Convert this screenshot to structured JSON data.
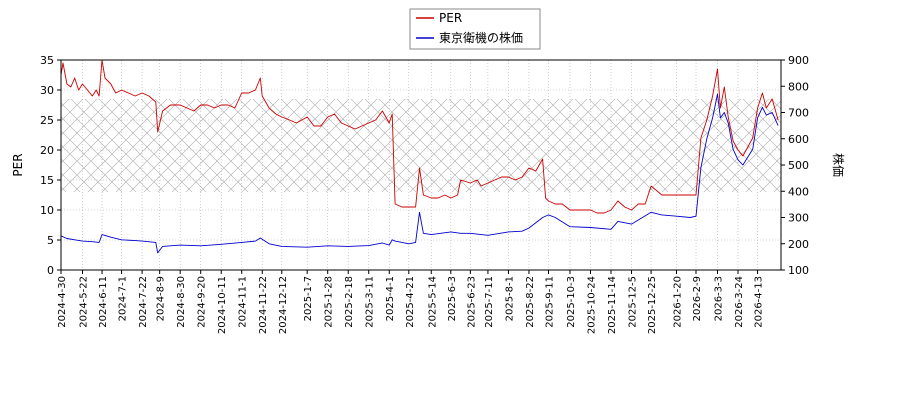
{
  "chart_data": {
    "type": "line",
    "legend": {
      "placement": "top-center",
      "entries": [
        {
          "label": "PER",
          "color": "#cc0000"
        },
        {
          "label": "東京衛機の株価",
          "color": "#0000cc"
        }
      ]
    },
    "ylabel_left": "PER",
    "ylabel_right": "株価",
    "ylim_left": [
      0,
      35
    ],
    "ylim_right": [
      100,
      900
    ],
    "yticks_left": [
      "0",
      "5",
      "10",
      "15",
      "20",
      "25",
      "30",
      "35"
    ],
    "yticks_right": [
      "100",
      "200",
      "300",
      "400",
      "500",
      "600",
      "700",
      "800",
      "900"
    ],
    "xlim": [
      "2024-04-30",
      "2026-05-07"
    ],
    "xticks": [
      "2024-4-30",
      "2024-5-22",
      "2024-6-11",
      "2024-7-1",
      "2024-7-22",
      "2024-8-9",
      "2024-8-30",
      "2024-9-20",
      "2024-10-11",
      "2024-11-1",
      "2024-11-22",
      "2024-12-12",
      "2025-1-7",
      "2025-1-28",
      "2025-2-18",
      "2025-3-11",
      "2025-4-1",
      "2025-4-21",
      "2025-5-14",
      "2025-6-3",
      "2025-6-23",
      "2025-7-11",
      "2025-8-1",
      "2025-8-22",
      "2025-9-11",
      "2025-10-3",
      "2025-10-24",
      "2025-11-14",
      "2025-12-5",
      "2025-12-25",
      "2026-1-20",
      "2026-2-9",
      "2026-3-3",
      "2026-3-24",
      "2026-4-13"
    ],
    "band_left": [
      13,
      28.5
    ],
    "band_style": "cross-hatch",
    "grid": true,
    "series": [
      {
        "name": "PER",
        "axis": "left",
        "color": "#cc0000",
        "points": [
          [
            "2024-04-30",
            32.5
          ],
          [
            "2024-05-02",
            34.5
          ],
          [
            "2024-05-06",
            31.0
          ],
          [
            "2024-05-10",
            30.5
          ],
          [
            "2024-05-14",
            32.0
          ],
          [
            "2024-05-18",
            30.0
          ],
          [
            "2024-05-22",
            31.0
          ],
          [
            "2024-05-27",
            30.0
          ],
          [
            "2024-06-01",
            29.0
          ],
          [
            "2024-06-05",
            30.0
          ],
          [
            "2024-06-08",
            29.0
          ],
          [
            "2024-06-11",
            35.0
          ],
          [
            "2024-06-14",
            32.0
          ],
          [
            "2024-06-20",
            31.0
          ],
          [
            "2024-06-25",
            29.5
          ],
          [
            "2024-07-01",
            30.0
          ],
          [
            "2024-07-08",
            29.5
          ],
          [
            "2024-07-15",
            29.0
          ],
          [
            "2024-07-22",
            29.5
          ],
          [
            "2024-07-29",
            29.0
          ],
          [
            "2024-08-05",
            28.0
          ],
          [
            "2024-08-07",
            23.0
          ],
          [
            "2024-08-12",
            26.5
          ],
          [
            "2024-08-20",
            27.5
          ],
          [
            "2024-08-30",
            27.5
          ],
          [
            "2024-09-06",
            27.0
          ],
          [
            "2024-09-13",
            26.5
          ],
          [
            "2024-09-20",
            27.5
          ],
          [
            "2024-09-27",
            27.5
          ],
          [
            "2024-10-04",
            27.0
          ],
          [
            "2024-10-11",
            27.5
          ],
          [
            "2024-10-18",
            27.5
          ],
          [
            "2024-10-25",
            27.0
          ],
          [
            "2024-11-01",
            29.5
          ],
          [
            "2024-11-08",
            29.5
          ],
          [
            "2024-11-15",
            30.0
          ],
          [
            "2024-11-20",
            32.0
          ],
          [
            "2024-11-22",
            29.0
          ],
          [
            "2024-11-29",
            27.0
          ],
          [
            "2024-12-06",
            26.0
          ],
          [
            "2024-12-12",
            25.5
          ],
          [
            "2024-12-20",
            25.0
          ],
          [
            "2024-12-27",
            24.5
          ],
          [
            "2025-01-07",
            25.5
          ],
          [
            "2025-01-14",
            24.0
          ],
          [
            "2025-01-21",
            24.0
          ],
          [
            "2025-01-28",
            25.5
          ],
          [
            "2025-02-04",
            26.0
          ],
          [
            "2025-02-11",
            24.5
          ],
          [
            "2025-02-18",
            24.0
          ],
          [
            "2025-02-25",
            23.5
          ],
          [
            "2025-03-04",
            24.0
          ],
          [
            "2025-03-11",
            24.5
          ],
          [
            "2025-03-18",
            25.0
          ],
          [
            "2025-03-25",
            26.5
          ],
          [
            "2025-04-01",
            24.5
          ],
          [
            "2025-04-04",
            26.0
          ],
          [
            "2025-04-07",
            11.0
          ],
          [
            "2025-04-14",
            10.5
          ],
          [
            "2025-04-21",
            10.5
          ],
          [
            "2025-04-28",
            10.5
          ],
          [
            "2025-05-02",
            17.0
          ],
          [
            "2025-05-06",
            12.5
          ],
          [
            "2025-05-14",
            12.0
          ],
          [
            "2025-05-21",
            12.0
          ],
          [
            "2025-05-28",
            12.5
          ],
          [
            "2025-06-03",
            12.0
          ],
          [
            "2025-06-10",
            12.5
          ],
          [
            "2025-06-13",
            15.0
          ],
          [
            "2025-06-23",
            14.5
          ],
          [
            "2025-06-30",
            15.0
          ],
          [
            "2025-07-04",
            14.0
          ],
          [
            "2025-07-11",
            14.5
          ],
          [
            "2025-07-18",
            15.0
          ],
          [
            "2025-07-25",
            15.5
          ],
          [
            "2025-08-01",
            15.5
          ],
          [
            "2025-08-08",
            15.0
          ],
          [
            "2025-08-15",
            15.5
          ],
          [
            "2025-08-22",
            17.0
          ],
          [
            "2025-08-29",
            16.5
          ],
          [
            "2025-09-05",
            18.5
          ],
          [
            "2025-09-08",
            12.0
          ],
          [
            "2025-09-11",
            11.5
          ],
          [
            "2025-09-18",
            11.0
          ],
          [
            "2025-09-25",
            11.0
          ],
          [
            "2025-10-03",
            10.0
          ],
          [
            "2025-10-10",
            10.0
          ],
          [
            "2025-10-17",
            10.0
          ],
          [
            "2025-10-24",
            10.0
          ],
          [
            "2025-10-31",
            9.5
          ],
          [
            "2025-11-07",
            9.5
          ],
          [
            "2025-11-14",
            10.0
          ],
          [
            "2025-11-21",
            11.5
          ],
          [
            "2025-11-28",
            10.5
          ],
          [
            "2025-12-05",
            10.0
          ],
          [
            "2025-12-12",
            11.0
          ],
          [
            "2025-12-19",
            11.0
          ],
          [
            "2025-12-25",
            14.0
          ],
          [
            "2026-01-05",
            12.5
          ],
          [
            "2026-01-12",
            12.5
          ],
          [
            "2026-01-20",
            12.5
          ],
          [
            "2026-01-27",
            12.5
          ],
          [
            "2026-02-03",
            12.5
          ],
          [
            "2026-02-09",
            12.5
          ],
          [
            "2026-02-14",
            22.0
          ],
          [
            "2026-02-20",
            25.0
          ],
          [
            "2026-02-26",
            29.0
          ],
          [
            "2026-03-03",
            33.5
          ],
          [
            "2026-03-06",
            27.0
          ],
          [
            "2026-03-10",
            30.5
          ],
          [
            "2026-03-14",
            25.5
          ],
          [
            "2026-03-19",
            21.5
          ],
          [
            "2026-03-24",
            20.0
          ],
          [
            "2026-03-29",
            19.0
          ],
          [
            "2026-04-03",
            20.5
          ],
          [
            "2026-04-08",
            22.0
          ],
          [
            "2026-04-13",
            27.0
          ],
          [
            "2026-04-18",
            29.5
          ],
          [
            "2026-04-22",
            27.0
          ],
          [
            "2026-04-28",
            28.5
          ],
          [
            "2026-05-04",
            25.0
          ]
        ]
      },
      {
        "name": "東京衛機の株価",
        "axis": "right",
        "color": "#0000cc",
        "points": [
          [
            "2024-04-30",
            230
          ],
          [
            "2024-05-06",
            220
          ],
          [
            "2024-05-14",
            215
          ],
          [
            "2024-05-22",
            210
          ],
          [
            "2024-06-01",
            208
          ],
          [
            "2024-06-08",
            205
          ],
          [
            "2024-06-11",
            235
          ],
          [
            "2024-06-20",
            225
          ],
          [
            "2024-07-01",
            215
          ],
          [
            "2024-07-15",
            212
          ],
          [
            "2024-07-22",
            210
          ],
          [
            "2024-08-05",
            205
          ],
          [
            "2024-08-07",
            165
          ],
          [
            "2024-08-12",
            190
          ],
          [
            "2024-08-30",
            195
          ],
          [
            "2024-09-20",
            192
          ],
          [
            "2024-10-11",
            198
          ],
          [
            "2024-11-01",
            205
          ],
          [
            "2024-11-15",
            210
          ],
          [
            "2024-11-20",
            222
          ],
          [
            "2024-11-29",
            200
          ],
          [
            "2024-12-12",
            190
          ],
          [
            "2025-01-07",
            187
          ],
          [
            "2025-01-28",
            192
          ],
          [
            "2025-02-18",
            190
          ],
          [
            "2025-03-11",
            193
          ],
          [
            "2025-03-25",
            203
          ],
          [
            "2025-04-01",
            195
          ],
          [
            "2025-04-04",
            215
          ],
          [
            "2025-04-07",
            210
          ],
          [
            "2025-04-21",
            200
          ],
          [
            "2025-04-28",
            205
          ],
          [
            "2025-05-02",
            320
          ],
          [
            "2025-05-06",
            240
          ],
          [
            "2025-05-14",
            235
          ],
          [
            "2025-06-03",
            245
          ],
          [
            "2025-06-13",
            240
          ],
          [
            "2025-06-23",
            240
          ],
          [
            "2025-07-11",
            232
          ],
          [
            "2025-08-01",
            245
          ],
          [
            "2025-08-15",
            248
          ],
          [
            "2025-08-22",
            260
          ],
          [
            "2025-09-05",
            300
          ],
          [
            "2025-09-11",
            310
          ],
          [
            "2025-09-18",
            300
          ],
          [
            "2025-10-03",
            265
          ],
          [
            "2025-10-24",
            262
          ],
          [
            "2025-11-14",
            255
          ],
          [
            "2025-11-21",
            285
          ],
          [
            "2025-12-05",
            275
          ],
          [
            "2025-12-25",
            320
          ],
          [
            "2026-01-05",
            310
          ],
          [
            "2026-01-20",
            305
          ],
          [
            "2026-02-03",
            300
          ],
          [
            "2026-02-09",
            305
          ],
          [
            "2026-02-14",
            490
          ],
          [
            "2026-02-20",
            600
          ],
          [
            "2026-02-26",
            680
          ],
          [
            "2026-03-03",
            770
          ],
          [
            "2026-03-06",
            680
          ],
          [
            "2026-03-10",
            700
          ],
          [
            "2026-03-14",
            660
          ],
          [
            "2026-03-19",
            560
          ],
          [
            "2026-03-24",
            520
          ],
          [
            "2026-03-29",
            500
          ],
          [
            "2026-04-03",
            530
          ],
          [
            "2026-04-08",
            560
          ],
          [
            "2026-04-13",
            680
          ],
          [
            "2026-04-18",
            720
          ],
          [
            "2026-04-22",
            690
          ],
          [
            "2026-04-28",
            700
          ],
          [
            "2026-05-04",
            650
          ]
        ]
      }
    ]
  }
}
